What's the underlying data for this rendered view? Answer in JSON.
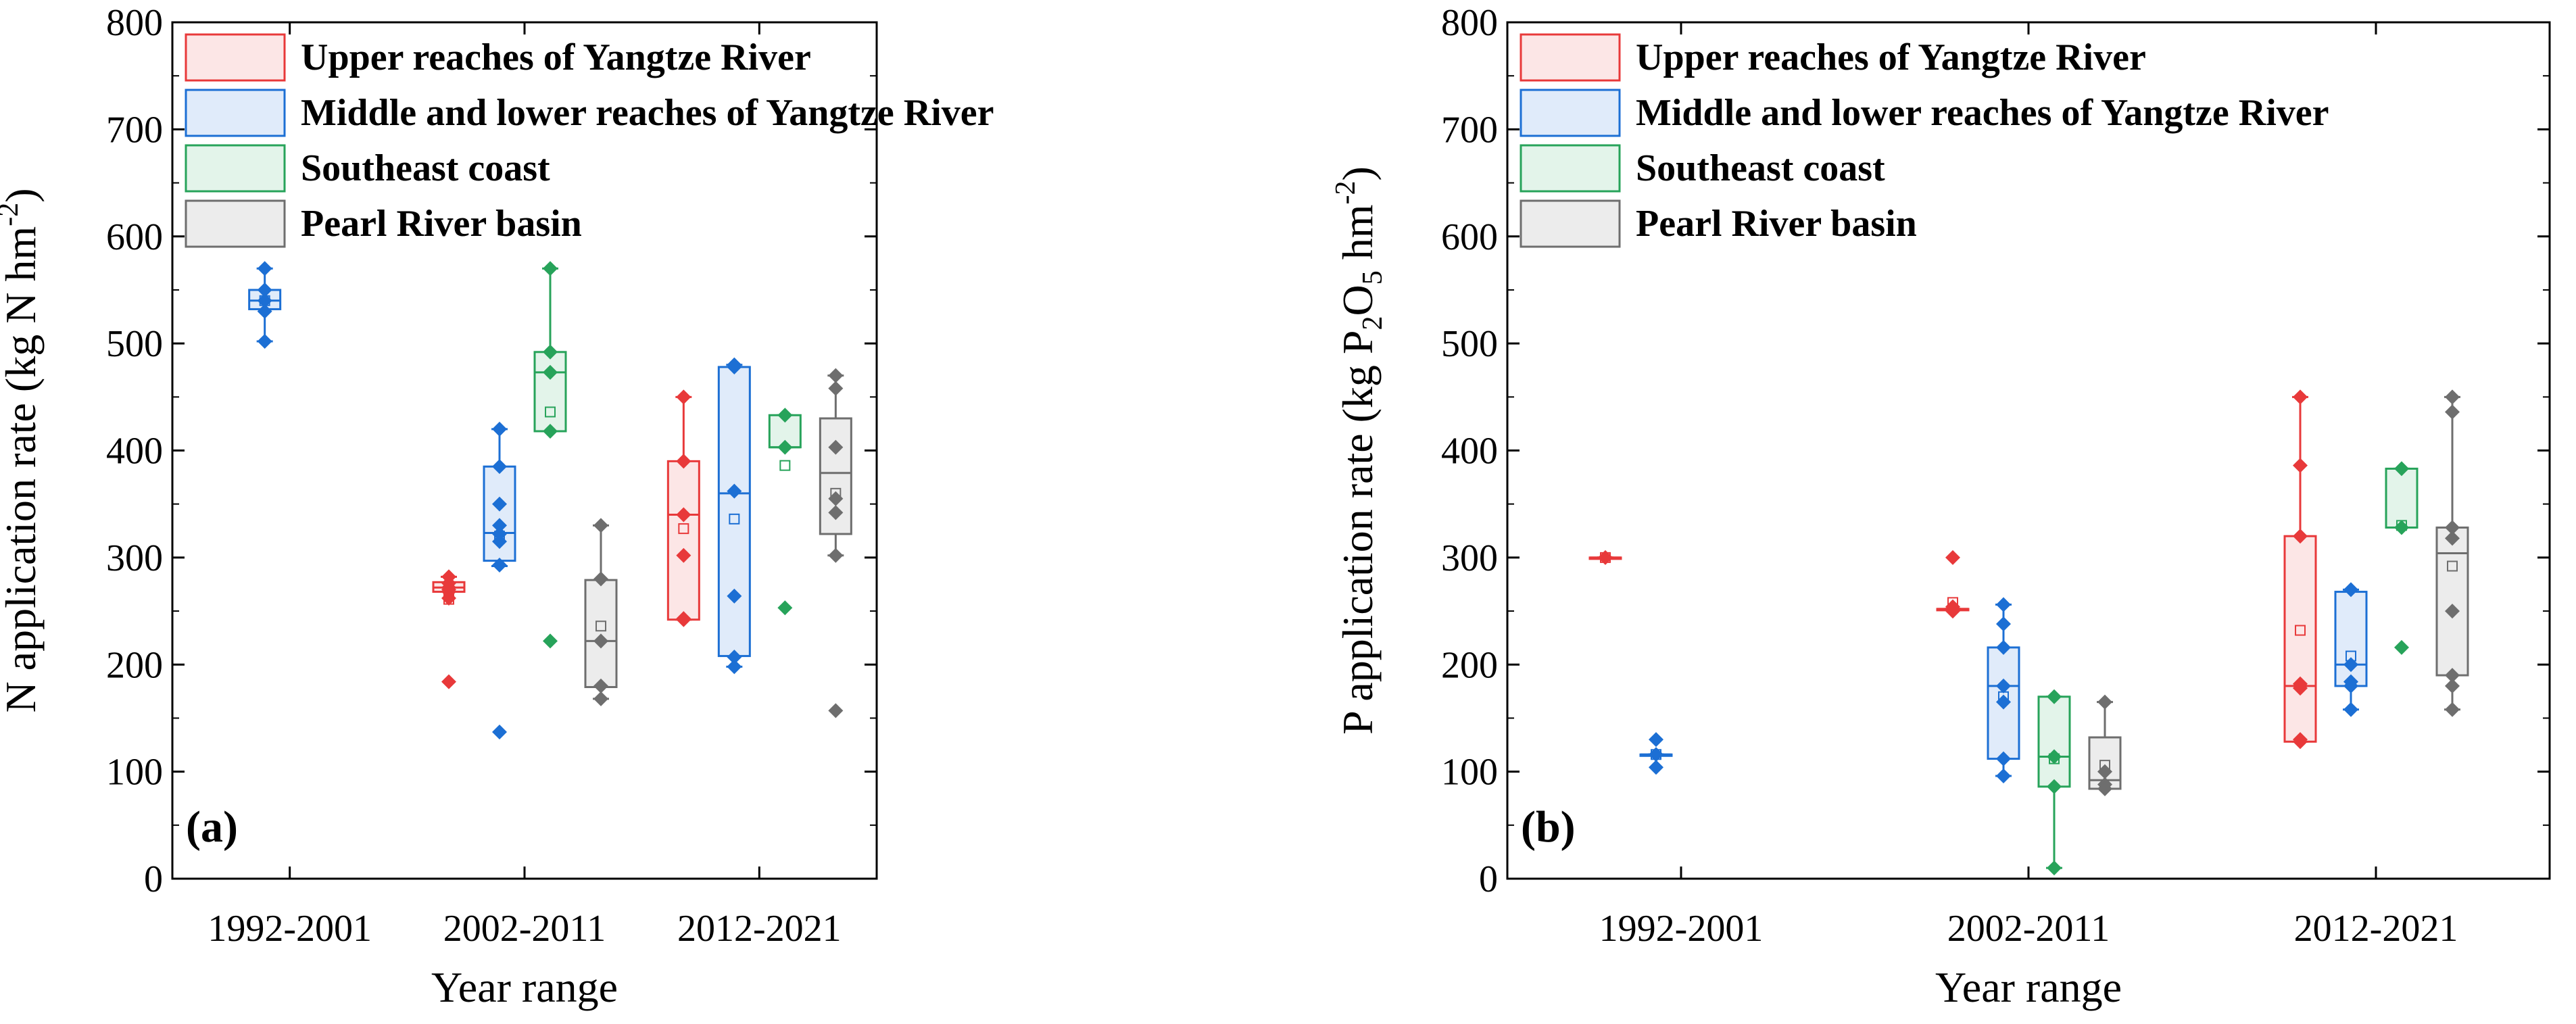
{
  "chart_data": [
    {
      "type": "boxplot",
      "panel_label": "(a)",
      "xlabel": "Year range",
      "ylabel": "N application rate (kg N hm",
      "ylabel_sup": "-2",
      "ylabel_end": ")",
      "ylim": [
        0,
        800
      ],
      "yticks": [
        0,
        100,
        200,
        300,
        400,
        500,
        600,
        700,
        800
      ],
      "categories": [
        "1992-2001",
        "2002-2011",
        "2012-2021"
      ],
      "legend": [
        "Upper reaches of Yangtze River",
        "Middle and lower reaches of Yangtze River",
        "Southeast coast",
        "Pearl River basin"
      ],
      "series": [
        {
          "name": "Upper reaches of Yangtze River",
          "color": "#e8393a",
          "fill": "#fce6e6",
          "boxes": [
            null,
            {
              "q1": 268,
              "median": 272,
              "q3": 277,
              "mean": 261,
              "wlow": 268,
              "whigh": 282,
              "points": [
                184,
                262,
                268,
                270,
                272,
                276,
                282
              ]
            },
            {
              "q1": 242,
              "median": 340,
              "q3": 390,
              "mean": 327,
              "wlow": 242,
              "whigh": 450,
              "points": [
                242,
                243,
                302,
                340,
                390,
                450
              ]
            }
          ]
        },
        {
          "name": "Middle and lower reaches of Yangtze River",
          "color": "#1c6fd4",
          "fill": "#e0ebfa",
          "boxes": [
            {
              "q1": 532,
              "median": 540,
              "q3": 550,
              "mean": 540,
              "wlow": 502,
              "whigh": 570,
              "points": [
                502,
                530,
                540,
                550,
                570
              ]
            },
            {
              "q1": 297,
              "median": 323,
              "q3": 385,
              "mean": 320,
              "wlow": 292,
              "whigh": 420,
              "points": [
                137,
                293,
                315,
                322,
                330,
                350,
                385,
                420
              ]
            },
            {
              "q1": 208,
              "median": 360,
              "q3": 478,
              "mean": 336,
              "wlow": 198,
              "whigh": 480,
              "points": [
                198,
                207,
                264,
                362,
                478,
                480
              ]
            }
          ]
        },
        {
          "name": "Southeast coast",
          "color": "#27a35a",
          "fill": "#e3f4ea",
          "boxes": [
            null,
            {
              "q1": 418,
              "median": 473,
              "q3": 492,
              "mean": 436,
              "wlow": 418,
              "whigh": 570,
              "points": [
                222,
                418,
                473,
                492,
                570
              ]
            },
            {
              "q1": 403,
              "median": 403,
              "q3": 433,
              "mean": 386,
              "wlow": 403,
              "whigh": 433,
              "points": [
                253,
                403,
                433
              ]
            }
          ]
        },
        {
          "name": "Pearl River basin",
          "color": "#6e6e6e",
          "fill": "#ececec",
          "boxes": [
            null,
            {
              "q1": 179,
              "median": 222,
              "q3": 279,
              "mean": 236,
              "wlow": 168,
              "whigh": 330,
              "points": [
                168,
                180,
                222,
                280,
                330
              ]
            },
            {
              "q1": 322,
              "median": 379,
              "q3": 430,
              "mean": 360,
              "wlow": 302,
              "whigh": 470,
              "points": [
                157,
                302,
                342,
                355,
                403,
                458,
                470
              ]
            }
          ]
        }
      ]
    },
    {
      "type": "boxplot",
      "panel_label": "(b)",
      "xlabel": "Year range",
      "ylabel": "P application rate (kg P",
      "ylabel_sub1": "2",
      "ylabel_mid": "O",
      "ylabel_sub2": "5",
      "ylabel_mid2": " hm",
      "ylabel_sup": "-2",
      "ylabel_end": ")",
      "ylim": [
        0,
        800
      ],
      "yticks": [
        0,
        100,
        200,
        300,
        400,
        500,
        600,
        700,
        800
      ],
      "categories": [
        "1992-2001",
        "2002-2011",
        "2012-2021"
      ],
      "legend": [
        "Upper reaches of Yangtze River",
        "Middle and lower reaches of Yangtze River",
        "Southeast coast",
        "Pearl River basin"
      ],
      "series": [
        {
          "name": "Upper reaches of Yangtze River",
          "color": "#e8393a",
          "fill": "#fce6e6",
          "boxes": [
            {
              "q1": 300,
              "median": 300,
              "q3": 300,
              "mean": 300,
              "wlow": 300,
              "whigh": 300,
              "points": [
                300
              ]
            },
            {
              "q1": 252,
              "median": 252,
              "q3": 252,
              "mean": 258,
              "wlow": 252,
              "whigh": 252,
              "points": [
                250,
                252,
                254,
                300
              ]
            },
            {
              "q1": 128,
              "median": 180,
              "q3": 320,
              "mean": 232,
              "wlow": 128,
              "whigh": 450,
              "points": [
                128,
                130,
                178,
                182,
                320,
                386,
                450
              ]
            }
          ]
        },
        {
          "name": "Middle and lower reaches of Yangtze River",
          "color": "#1c6fd4",
          "fill": "#e0ebfa",
          "boxes": [
            {
              "q1": 116,
              "median": 116,
              "q3": 116,
              "mean": 116,
              "wlow": 116,
              "whigh": 116,
              "points": [
                104,
                116,
                130
              ]
            },
            {
              "q1": 112,
              "median": 180,
              "q3": 216,
              "mean": 170,
              "wlow": 96,
              "whigh": 256,
              "points": [
                96,
                112,
                165,
                180,
                216,
                238,
                256
              ]
            },
            {
              "q1": 180,
              "median": 200,
              "q3": 268,
              "mean": 208,
              "wlow": 158,
              "whigh": 270,
              "points": [
                158,
                180,
                184,
                200,
                270
              ]
            }
          ]
        },
        {
          "name": "Southeast coast",
          "color": "#27a35a",
          "fill": "#e3f4ea",
          "boxes": [
            null,
            {
              "q1": 86,
              "median": 114,
              "q3": 170,
              "mean": 112,
              "wlow": 10,
              "whigh": 170,
              "points": [
                10,
                86,
                114,
                170
              ]
            },
            {
              "q1": 328,
              "median": 328,
              "q3": 383,
              "mean": 330,
              "wlow": 328,
              "whigh": 383,
              "points": [
                216,
                328,
                383
              ]
            }
          ]
        },
        {
          "name": "Pearl River basin",
          "color": "#6e6e6e",
          "fill": "#ececec",
          "boxes": [
            null,
            {
              "q1": 84,
              "median": 92,
              "q3": 132,
              "mean": 106,
              "wlow": 84,
              "whigh": 165,
              "points": [
                84,
                88,
                100,
                165
              ]
            },
            {
              "q1": 190,
              "median": 304,
              "q3": 328,
              "mean": 292,
              "wlow": 158,
              "whigh": 450,
              "points": [
                158,
                180,
                190,
                250,
                318,
                328,
                436,
                450
              ]
            }
          ]
        }
      ]
    }
  ]
}
